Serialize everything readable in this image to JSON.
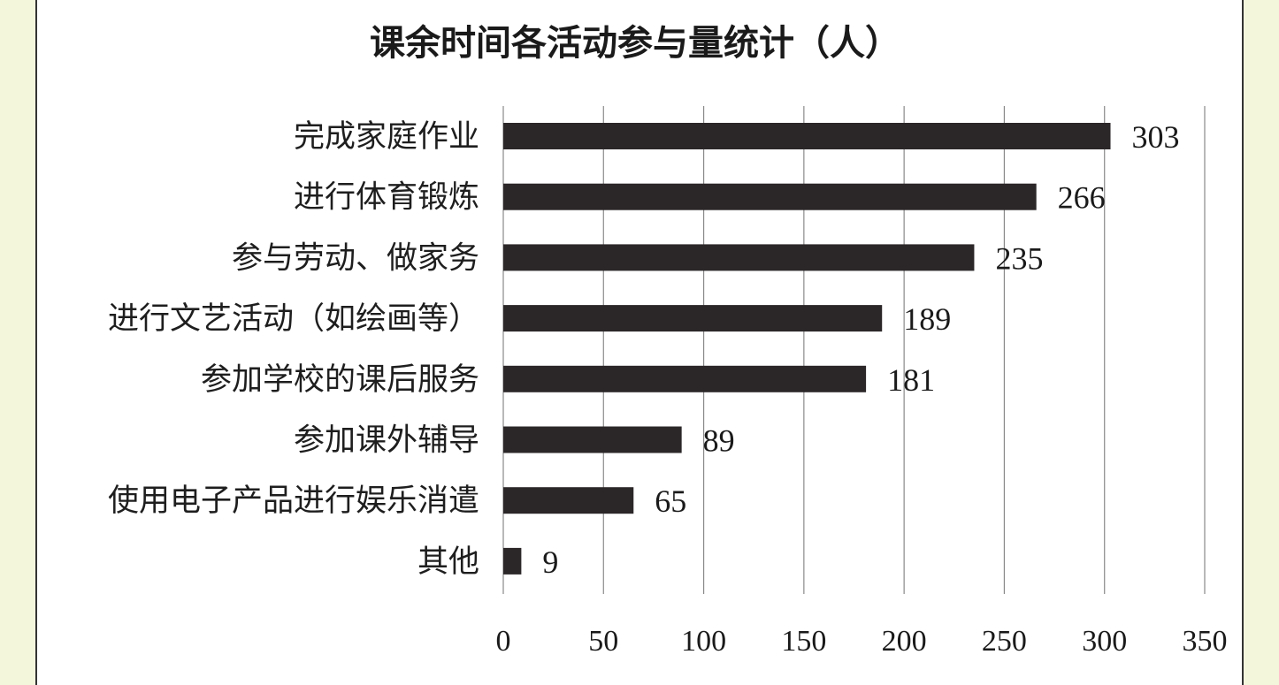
{
  "chart_data": {
    "type": "bar",
    "orientation": "horizontal",
    "title": "课余时间各活动参与量统计（人）",
    "categories": [
      "完成家庭作业",
      "进行体育锻炼",
      "参与劳动、做家务",
      "进行文艺活动（如绘画等）",
      "参加学校的课后服务",
      "参加课外辅导",
      "使用电子产品进行娱乐消遣",
      "其他"
    ],
    "values": [
      303,
      266,
      235,
      189,
      181,
      89,
      65,
      9
    ],
    "value_labels": [
      "303",
      "266",
      "235",
      "189",
      "181",
      "89",
      "65",
      "9"
    ],
    "xlim": [
      0,
      350
    ],
    "x_ticks": [
      0,
      50,
      100,
      150,
      200,
      250,
      300,
      350
    ],
    "x_tick_labels": [
      "0",
      "50",
      "100",
      "150",
      "200",
      "250",
      "300",
      "350"
    ],
    "grid": "vertical",
    "legend": "none",
    "bar_color": "#2b2628",
    "xlabel": "",
    "ylabel": ""
  }
}
